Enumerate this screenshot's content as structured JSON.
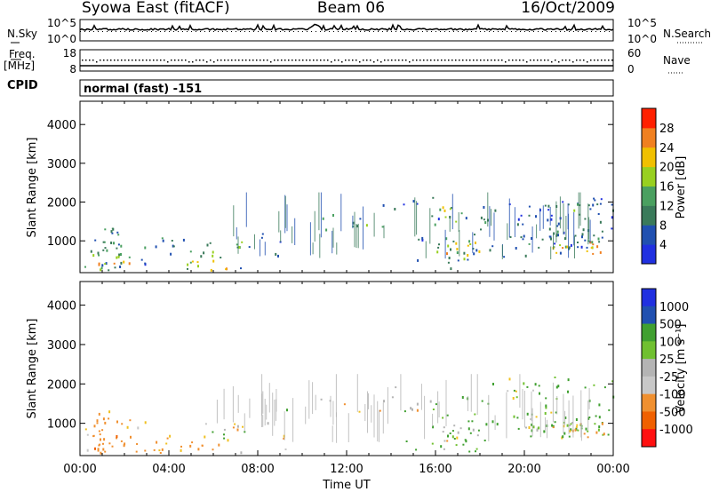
{
  "header": {
    "site": "Syowa East (fitACF)",
    "beam": "Beam 06",
    "date": "16/Oct/2009"
  },
  "top_panels": {
    "nsky_label": "N.Sky",
    "nsearch_label": "N.Search",
    "noise_ticks": [
      "10^5",
      "10^0"
    ],
    "freq_label_1": "Freq.",
    "freq_label_2": "[MHz]",
    "freq_ticks": [
      "18",
      "8"
    ],
    "nave_label": "Nave",
    "nave_ticks": [
      "60",
      "0"
    ],
    "cpid_label": "CPID",
    "cpid_value": "normal (fast) -151"
  },
  "colors": {
    "power_scale": [
      "#2030e0",
      "#2050b0",
      "#3a7a5a",
      "#4aa060",
      "#98d020",
      "#f0c000",
      "#f08020",
      "#ff2000"
    ],
    "velocity_scale": [
      "#ff1010",
      "#f06000",
      "#f09030",
      "#f0c020",
      "#c8c8c8",
      "#b4b4b4",
      "#70c030",
      "#40a030",
      "#3a7a5a",
      "#2050b0",
      "#2030e0"
    ],
    "groundscatter": "#b4b4b4"
  },
  "chart_data": [
    {
      "type": "heatmap",
      "name": "power",
      "xlabel": "",
      "ylabel": "Slant Range [km]",
      "xlim": [
        0,
        24
      ],
      "ylim": [
        180,
        4600
      ],
      "y_ticks": [
        1000,
        2000,
        3000,
        4000
      ],
      "colorbar": {
        "label": "Power [dB]",
        "range": [
          0,
          32
        ],
        "tick_labels": [
          "28",
          "24",
          "20",
          "16",
          "12",
          "8",
          "4"
        ],
        "tick_values": [
          28,
          24,
          20,
          16,
          12,
          8,
          4
        ]
      },
      "regions": [
        {
          "t0": 0.2,
          "t1": 2.6,
          "r0": 250,
          "r1": 1350,
          "mean_db": 10,
          "density": 0.55
        },
        {
          "t0": 0.5,
          "t1": 2.2,
          "r0": 250,
          "r1": 700,
          "mean_db": 22,
          "density": 0.6
        },
        {
          "t0": 2.6,
          "t1": 5.0,
          "r0": 250,
          "r1": 1100,
          "mean_db": 8,
          "density": 0.25
        },
        {
          "t0": 3.3,
          "t1": 4.4,
          "r0": 850,
          "r1": 1150,
          "mean_db": 9,
          "density": 0.5
        },
        {
          "t0": 4.5,
          "t1": 6.6,
          "r0": 250,
          "r1": 550,
          "mean_db": 21,
          "density": 0.55
        },
        {
          "t0": 5.4,
          "t1": 7.4,
          "r0": 550,
          "r1": 1050,
          "mean_db": 14,
          "density": 0.55
        },
        {
          "t0": 6.5,
          "t1": 10.0,
          "r0": 250,
          "r1": 1400,
          "mean_db": 6,
          "density": 0.08
        },
        {
          "t0": 10.5,
          "t1": 13.8,
          "r0": 1300,
          "r1": 1700,
          "mean_db": 10,
          "density": 0.2
        },
        {
          "t0": 12.0,
          "t1": 13.5,
          "r0": 1380,
          "r1": 1520,
          "mean_db": 14,
          "density": 0.6
        },
        {
          "t0": 13.5,
          "t1": 16.5,
          "r0": 300,
          "r1": 2200,
          "mean_db": 6,
          "density": 0.09
        },
        {
          "t0": 15.8,
          "t1": 18.5,
          "r0": 300,
          "r1": 1900,
          "mean_db": 8,
          "density": 0.3
        },
        {
          "t0": 15.9,
          "t1": 17.2,
          "r0": 1500,
          "r1": 1900,
          "mean_db": 17,
          "density": 0.5
        },
        {
          "t0": 16.0,
          "t1": 18.3,
          "r0": 550,
          "r1": 1000,
          "mean_db": 20,
          "density": 0.5
        },
        {
          "t0": 18.5,
          "t1": 24.0,
          "r0": 600,
          "r1": 2200,
          "mean_db": 7,
          "density": 0.3
        },
        {
          "t0": 19.5,
          "t1": 23.5,
          "r0": 800,
          "r1": 1300,
          "mean_db": 11,
          "density": 0.6
        },
        {
          "t0": 21.2,
          "t1": 23.6,
          "r0": 650,
          "r1": 1050,
          "mean_db": 23,
          "density": 0.6
        },
        {
          "t0": 22.0,
          "t1": 23.0,
          "r0": 1600,
          "r1": 2000,
          "mean_db": 15,
          "density": 0.5
        }
      ]
    },
    {
      "type": "heatmap",
      "name": "velocity",
      "xlabel": "Time UT",
      "ylabel": "Slant Range [km]",
      "xlim": [
        0,
        24
      ],
      "ylim": [
        180,
        4600
      ],
      "x_tick_labels": [
        "00:00",
        "04:00",
        "08:00",
        "12:00",
        "16:00",
        "20:00",
        "00:00"
      ],
      "x_tick_values": [
        0,
        4,
        8,
        12,
        16,
        20,
        24
      ],
      "y_ticks": [
        1000,
        2000,
        3000,
        4000
      ],
      "colorbar": {
        "label": "Velocity [m s⁻¹]",
        "tick_labels": [
          "1000",
          "500",
          "100",
          "25",
          "-25",
          "-100",
          "-500",
          "-1000"
        ]
      },
      "regions": [
        {
          "t0": 0.2,
          "t1": 2.6,
          "r0": 250,
          "r1": 1350,
          "mean_v": -200,
          "density": 0.55
        },
        {
          "t0": 0.5,
          "t1": 2.2,
          "r0": 250,
          "r1": 700,
          "mean_v": -400,
          "density": 0.6
        },
        {
          "t0": 2.6,
          "t1": 5.0,
          "r0": 250,
          "r1": 1100,
          "mean_v": -150,
          "density": 0.25
        },
        {
          "t0": 4.5,
          "t1": 6.6,
          "r0": 250,
          "r1": 550,
          "mean_v": -250,
          "density": 0.55
        },
        {
          "t0": 5.4,
          "t1": 7.4,
          "r0": 550,
          "r1": 1050,
          "mean_v": 60,
          "density": 0.55
        },
        {
          "t0": 6.5,
          "t1": 10.0,
          "r0": 250,
          "r1": 1400,
          "mean_v": 0,
          "density": 0.08
        },
        {
          "t0": 10.5,
          "t1": 13.8,
          "r0": 1300,
          "r1": 1700,
          "mean_v": 0,
          "density": 0.2
        },
        {
          "t0": 13.5,
          "t1": 16.5,
          "r0": 300,
          "r1": 2200,
          "mean_v": 0,
          "density": 0.09
        },
        {
          "t0": 15.8,
          "t1": 18.5,
          "r0": 300,
          "r1": 1900,
          "mean_v": 250,
          "density": 0.3
        },
        {
          "t0": 16.0,
          "t1": 18.3,
          "r0": 550,
          "r1": 1000,
          "mean_v": 0,
          "density": 0.5
        },
        {
          "t0": 18.5,
          "t1": 24.0,
          "r0": 600,
          "r1": 2200,
          "mean_v": 150,
          "density": 0.3
        },
        {
          "t0": 19.5,
          "t1": 23.5,
          "r0": 800,
          "r1": 1300,
          "mean_v": 80,
          "density": 0.6
        },
        {
          "t0": 21.2,
          "t1": 23.6,
          "r0": 650,
          "r1": 1050,
          "mean_v": -150,
          "density": 0.6
        }
      ]
    }
  ]
}
